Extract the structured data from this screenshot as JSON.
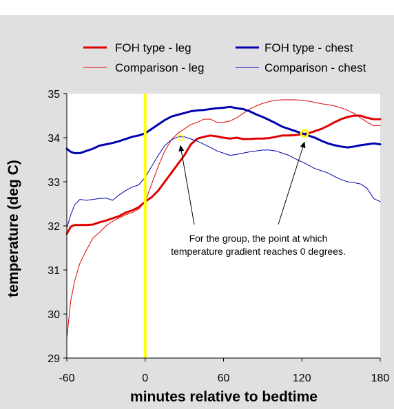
{
  "chart_data": {
    "type": "line",
    "title": "",
    "xlabel": "minutes relative to bedtime",
    "ylabel": "temperature (deg C)",
    "xlim": [
      -60,
      180
    ],
    "ylim": [
      29,
      35
    ],
    "x_ticks": [
      "-60",
      "0",
      "60",
      "120",
      "180"
    ],
    "y_ticks": [
      "29",
      "30",
      "31",
      "32",
      "33",
      "34",
      "35"
    ],
    "grid": false,
    "legend_placement": "top",
    "background_color": "#e0e0e0",
    "plot_background": "#ffffff",
    "bedtime_marker": {
      "x": 0,
      "color": "#ffff00"
    },
    "series": [
      {
        "name": "FOH type - leg",
        "color": "#e00000",
        "weight": "thick",
        "x": [
          -60,
          -57,
          -54,
          -50,
          -45,
          -40,
          -35,
          -30,
          -25,
          -20,
          -15,
          -10,
          -5,
          0,
          5,
          10,
          15,
          20,
          25,
          30,
          35,
          40,
          45,
          50,
          55,
          60,
          65,
          70,
          75,
          80,
          85,
          90,
          95,
          100,
          105,
          110,
          115,
          120,
          125,
          130,
          135,
          140,
          145,
          150,
          155,
          160,
          165,
          170,
          175,
          180
        ],
        "values": [
          31.82,
          31.98,
          32.02,
          32.02,
          32.02,
          32.03,
          32.08,
          32.12,
          32.17,
          32.22,
          32.3,
          32.35,
          32.42,
          32.55,
          32.65,
          32.8,
          33.0,
          33.2,
          33.4,
          33.6,
          33.85,
          33.98,
          34.02,
          34.05,
          34.03,
          34.0,
          33.98,
          34.0,
          33.97,
          33.97,
          33.98,
          33.98,
          33.99,
          34.02,
          34.05,
          34.05,
          34.06,
          34.08,
          34.1,
          34.15,
          34.2,
          34.27,
          34.35,
          34.42,
          34.47,
          34.5,
          34.5,
          34.45,
          34.42,
          34.42
        ]
      },
      {
        "name": "Comparison - leg",
        "color": "#e00000",
        "weight": "thin",
        "x": [
          -60,
          -57,
          -54,
          -50,
          -45,
          -40,
          -35,
          -30,
          -25,
          -20,
          -15,
          -10,
          -5,
          0,
          5,
          10,
          15,
          20,
          25,
          30,
          35,
          40,
          45,
          50,
          55,
          60,
          65,
          70,
          75,
          80,
          85,
          90,
          95,
          100,
          105,
          110,
          115,
          120,
          125,
          130,
          135,
          140,
          145,
          150,
          155,
          160,
          165,
          170,
          175,
          180
        ],
        "values": [
          29.45,
          30.3,
          30.75,
          31.15,
          31.45,
          31.72,
          31.85,
          32.0,
          32.1,
          32.18,
          32.25,
          32.3,
          32.38,
          32.55,
          32.95,
          33.35,
          33.7,
          33.95,
          34.1,
          34.2,
          34.3,
          34.35,
          34.42,
          34.42,
          34.35,
          34.35,
          34.38,
          34.45,
          34.55,
          34.65,
          34.72,
          34.78,
          34.82,
          34.85,
          34.86,
          34.86,
          34.86,
          34.85,
          34.83,
          34.8,
          34.77,
          34.75,
          34.72,
          34.68,
          34.62,
          34.55,
          34.45,
          34.35,
          34.27,
          34.28
        ]
      },
      {
        "name": "FOH type - chest",
        "color": "#0000b0",
        "weight": "thick",
        "x": [
          -60,
          -57,
          -54,
          -50,
          -45,
          -40,
          -35,
          -30,
          -25,
          -20,
          -15,
          -10,
          -5,
          0,
          5,
          10,
          15,
          20,
          25,
          30,
          35,
          40,
          45,
          50,
          55,
          60,
          65,
          70,
          75,
          80,
          85,
          90,
          95,
          100,
          105,
          110,
          115,
          120,
          125,
          130,
          135,
          140,
          145,
          150,
          155,
          160,
          165,
          170,
          175,
          180
        ],
        "values": [
          33.75,
          33.68,
          33.65,
          33.65,
          33.7,
          33.75,
          33.82,
          33.85,
          33.88,
          33.92,
          33.97,
          34.02,
          34.05,
          34.1,
          34.2,
          34.3,
          34.4,
          34.48,
          34.52,
          34.56,
          34.6,
          34.62,
          34.63,
          34.65,
          34.67,
          34.68,
          34.7,
          34.67,
          34.65,
          34.6,
          34.53,
          34.47,
          34.4,
          34.33,
          34.25,
          34.2,
          34.15,
          34.1,
          34.05,
          34.0,
          33.93,
          33.87,
          33.83,
          33.8,
          33.78,
          33.8,
          33.83,
          33.85,
          33.87,
          33.85
        ]
      },
      {
        "name": "Comparison - chest",
        "color": "#0000b0",
        "weight": "thin",
        "x": [
          -60,
          -57,
          -54,
          -50,
          -45,
          -40,
          -35,
          -30,
          -25,
          -20,
          -15,
          -10,
          -5,
          0,
          5,
          10,
          15,
          20,
          25,
          30,
          35,
          40,
          45,
          50,
          55,
          60,
          65,
          70,
          75,
          80,
          85,
          90,
          95,
          100,
          105,
          110,
          115,
          120,
          125,
          130,
          135,
          140,
          145,
          150,
          155,
          160,
          165,
          170,
          175,
          180
        ],
        "values": [
          31.95,
          32.25,
          32.48,
          32.6,
          32.58,
          32.6,
          32.62,
          32.63,
          32.58,
          32.7,
          32.8,
          32.88,
          32.93,
          33.1,
          33.35,
          33.6,
          33.82,
          33.95,
          34.02,
          34.02,
          33.97,
          33.92,
          33.85,
          33.78,
          33.7,
          33.65,
          33.6,
          33.62,
          33.65,
          33.68,
          33.7,
          33.72,
          33.72,
          33.7,
          33.65,
          33.6,
          33.52,
          33.45,
          33.38,
          33.3,
          33.25,
          33.2,
          33.12,
          33.05,
          33.0,
          32.98,
          32.95,
          32.85,
          32.62,
          32.55
        ]
      }
    ],
    "highlight_points": [
      {
        "x": 27,
        "y": 34.0,
        "marker": "small-ring"
      },
      {
        "x": 122,
        "y": 34.1,
        "marker": "large-ring"
      }
    ],
    "annotation": {
      "lines": [
        "For the group, the point at which",
        "temperature gradient reaches 0 degrees."
      ],
      "color": "#ffff00",
      "arrow_targets": [
        {
          "x": 27,
          "y": 33.82
        },
        {
          "x": 122,
          "y": 33.9
        }
      ]
    }
  }
}
